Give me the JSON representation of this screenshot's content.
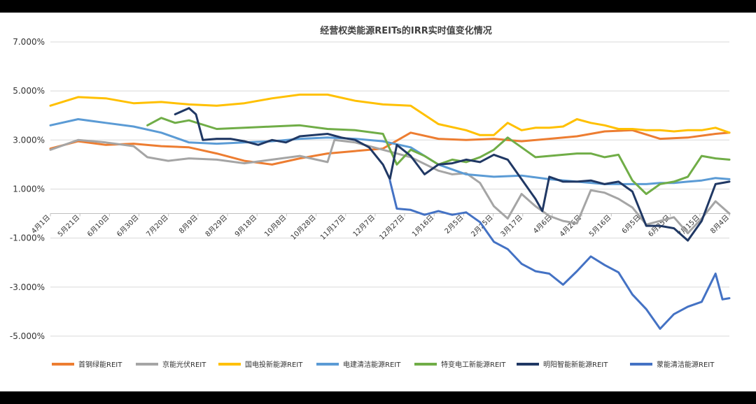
{
  "chart_data": {
    "type": "line",
    "title": "经营权类能源REITs的IRR实时值变化情况",
    "xlabel": "",
    "ylabel": "",
    "ylim": [
      -6,
      7
    ],
    "grid": true,
    "legend_position": "bottom",
    "y_ticks": [
      "7.000%",
      "5.000%",
      "3.000%",
      "1.000%",
      "-1.000%",
      "-3.000%",
      "-5.000%"
    ],
    "y_tick_values": [
      7,
      5,
      3,
      1,
      -1,
      -3,
      -5
    ],
    "x_ticks": [
      "4月1日",
      "5月21日",
      "6月10日",
      "6月30日",
      "7月20日",
      "8月9日",
      "8月29日",
      "9月18日",
      "10月8日",
      "10月28日",
      "11月17日",
      "12月7日",
      "12月27日",
      "1月16日",
      "2月5日",
      "2月25日",
      "3月17日",
      "4月6日",
      "4月26日",
      "5月16日",
      "6月5日",
      "6月25日",
      "7月15日",
      "8月4日"
    ],
    "series": [
      {
        "name": "首钢绿能REIT",
        "color": "#ED7D31",
        "x": [
          0,
          4,
          8,
          12,
          16,
          20,
          24,
          28,
          32,
          36,
          40,
          44,
          48,
          52,
          56,
          60,
          64,
          68,
          72,
          76,
          80,
          84,
          88,
          92,
          96,
          98
        ],
        "y": [
          2.65,
          2.95,
          2.8,
          2.85,
          2.75,
          2.7,
          2.45,
          2.15,
          2.0,
          2.25,
          2.45,
          2.55,
          2.65,
          3.3,
          3.05,
          3.0,
          3.05,
          2.95,
          3.05,
          3.15,
          3.35,
          3.4,
          3.05,
          3.1,
          3.25,
          3.3
        ]
      },
      {
        "name": "京能光伏REIT",
        "color": "#A5A5A5",
        "x": [
          0,
          4,
          8,
          12,
          14,
          17,
          20,
          24,
          28,
          32,
          36,
          40,
          41,
          44,
          48,
          52,
          56,
          58,
          60,
          62,
          64,
          66,
          68,
          70,
          72,
          74,
          76,
          78,
          80,
          82,
          84,
          86,
          88,
          90,
          92,
          94,
          96,
          98
        ],
        "y": [
          2.6,
          3.0,
          2.9,
          2.75,
          2.3,
          2.15,
          2.25,
          2.2,
          2.05,
          2.2,
          2.35,
          2.1,
          3.0,
          2.9,
          2.6,
          2.3,
          1.75,
          1.6,
          1.65,
          1.25,
          0.3,
          -0.2,
          0.8,
          0.3,
          -0.1,
          -0.3,
          -0.4,
          0.95,
          0.85,
          0.6,
          0.25,
          -0.45,
          -0.3,
          -0.15,
          -0.8,
          -0.2,
          0.5,
          0.0
        ]
      },
      {
        "name": "国电投新能源REIT",
        "color": "#FFC000",
        "x": [
          0,
          4,
          8,
          12,
          16,
          20,
          24,
          28,
          32,
          36,
          40,
          44,
          48,
          52,
          56,
          60,
          62,
          64,
          66,
          68,
          70,
          72,
          74,
          76,
          78,
          80,
          82,
          84,
          86,
          88,
          90,
          92,
          94,
          96,
          98
        ],
        "y": [
          4.4,
          4.75,
          4.7,
          4.5,
          4.55,
          4.45,
          4.4,
          4.5,
          4.7,
          4.85,
          4.85,
          4.6,
          4.45,
          4.4,
          3.65,
          3.4,
          3.2,
          3.2,
          3.7,
          3.4,
          3.5,
          3.5,
          3.55,
          3.85,
          3.7,
          3.6,
          3.45,
          3.45,
          3.4,
          3.4,
          3.35,
          3.4,
          3.4,
          3.5,
          3.3
        ]
      },
      {
        "name": "电建清洁能源REIT",
        "color": "#5B9BD5",
        "x": [
          0,
          4,
          8,
          12,
          16,
          20,
          24,
          28,
          32,
          36,
          40,
          44,
          48,
          52,
          56,
          60,
          64,
          68,
          72,
          76,
          80,
          82,
          84,
          86,
          88,
          90,
          92,
          94,
          96,
          98
        ],
        "y": [
          3.6,
          3.85,
          3.7,
          3.55,
          3.3,
          2.9,
          2.85,
          2.9,
          2.95,
          3.05,
          3.1,
          3.05,
          2.95,
          2.7,
          2.0,
          1.6,
          1.5,
          1.55,
          1.4,
          1.3,
          1.2,
          1.2,
          1.2,
          1.2,
          1.25,
          1.25,
          1.3,
          1.35,
          1.45,
          1.4
        ]
      },
      {
        "name": "特变电工新能源REIT",
        "color": "#70AD47",
        "x": [
          14,
          16,
          18,
          20,
          24,
          28,
          32,
          36,
          40,
          44,
          48,
          50,
          52,
          54,
          56,
          58,
          60,
          62,
          64,
          66,
          68,
          70,
          72,
          74,
          76,
          78,
          80,
          82,
          84,
          86,
          88,
          90,
          92,
          94,
          96,
          98
        ],
        "y": [
          3.6,
          3.9,
          3.7,
          3.8,
          3.45,
          3.5,
          3.55,
          3.6,
          3.45,
          3.4,
          3.25,
          2.0,
          2.6,
          2.35,
          2.0,
          2.2,
          2.1,
          2.3,
          2.6,
          3.1,
          2.7,
          2.3,
          2.35,
          2.4,
          2.45,
          2.45,
          2.3,
          2.4,
          1.35,
          0.8,
          1.2,
          1.3,
          1.5,
          2.35,
          2.25,
          2.2
        ]
      },
      {
        "name": "明阳智能新能源REIT",
        "color": "#203864",
        "x": [
          18,
          20,
          21,
          22,
          24,
          26,
          28,
          30,
          32,
          34,
          36,
          38,
          40,
          42,
          44,
          46,
          48,
          49,
          50,
          52,
          54,
          56,
          58,
          60,
          62,
          64,
          66,
          68,
          70,
          71,
          72,
          74,
          76,
          78,
          80,
          82,
          84,
          86,
          88,
          90,
          92,
          94,
          96,
          98
        ],
        "y": [
          4.05,
          4.3,
          4.05,
          3.0,
          3.05,
          3.05,
          2.95,
          2.8,
          3.0,
          2.9,
          3.15,
          3.2,
          3.25,
          3.1,
          3.0,
          2.7,
          2.0,
          1.4,
          2.8,
          2.35,
          1.6,
          2.0,
          2.05,
          2.2,
          2.1,
          2.4,
          2.2,
          1.4,
          0.6,
          0.1,
          1.5,
          1.3,
          1.3,
          1.35,
          1.2,
          1.3,
          0.9,
          -0.5,
          -0.5,
          -0.6,
          -1.1,
          -0.3,
          1.2,
          1.3
        ]
      },
      {
        "name": "蒙能清洁能源REIT",
        "color": "#4472C4",
        "x": [
          49,
          50,
          52,
          54,
          56,
          58,
          60,
          62,
          64,
          66,
          68,
          70,
          72,
          74,
          76,
          78,
          80,
          82,
          84,
          86,
          88,
          90,
          92,
          94,
          96,
          97,
          98
        ],
        "y": [
          1.35,
          0.2,
          0.15,
          -0.05,
          0.1,
          -0.05,
          0.05,
          -0.35,
          -1.15,
          -1.45,
          -2.05,
          -2.35,
          -2.45,
          -2.9,
          -2.35,
          -1.75,
          -2.1,
          -2.4,
          -3.3,
          -3.9,
          -4.7,
          -4.1,
          -3.8,
          -3.6,
          -2.45,
          -3.5,
          -3.45
        ]
      }
    ]
  }
}
